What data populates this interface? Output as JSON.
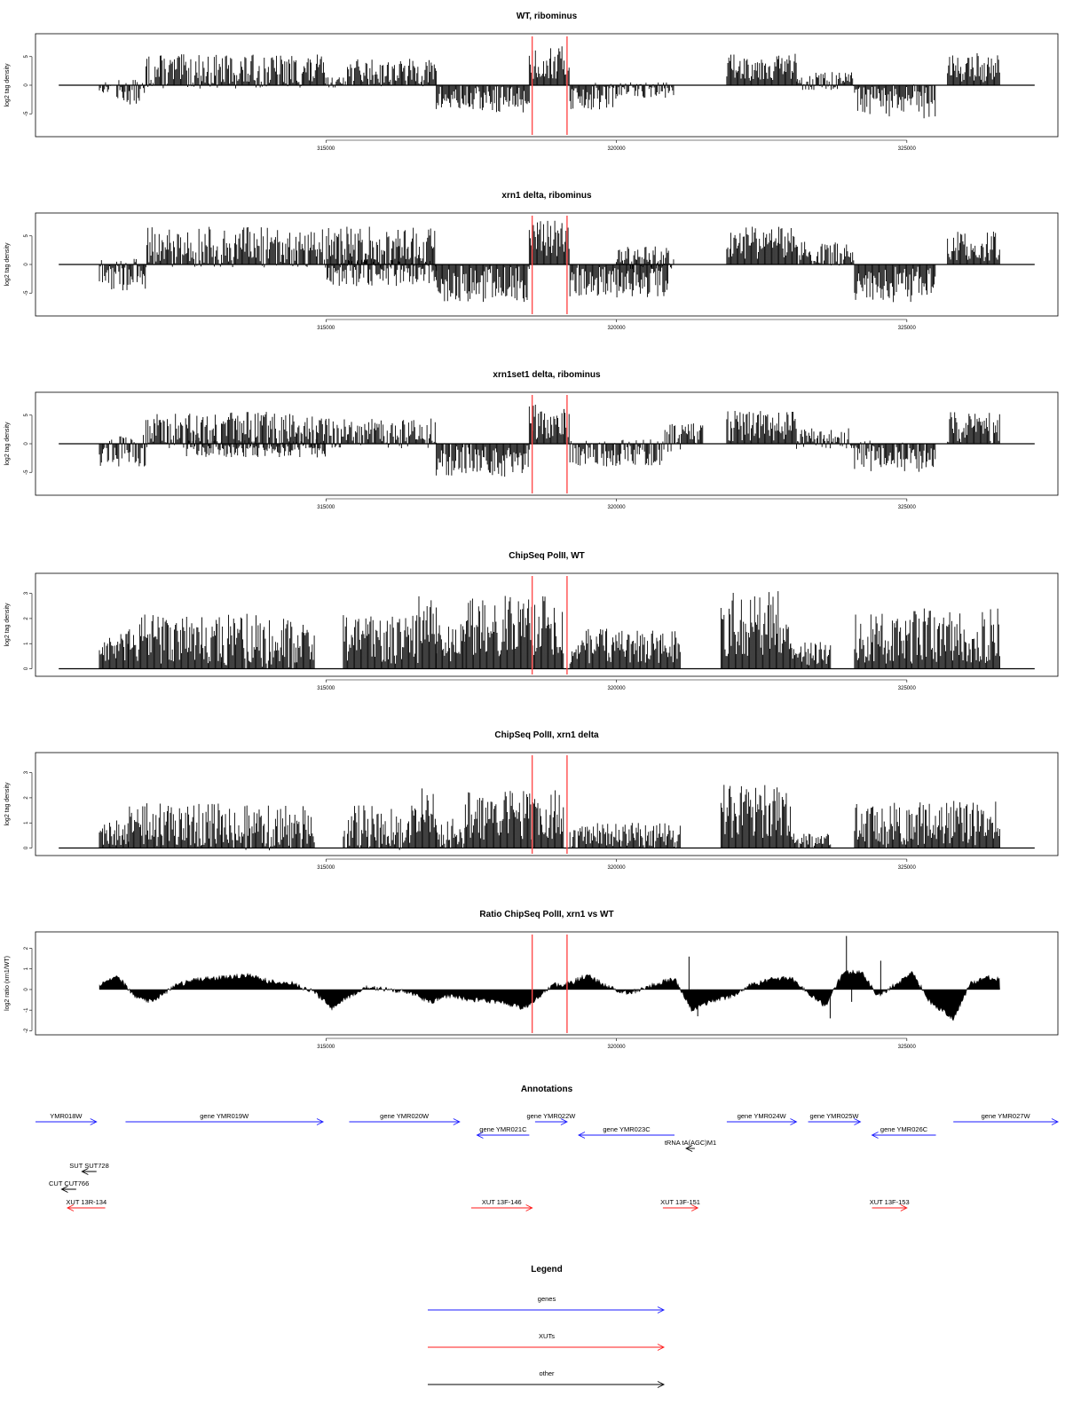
{
  "chart_data": [
    {
      "type": "bar",
      "title": "WT, ribominus",
      "ylabel": "log2 tag density",
      "ylim": [
        -9,
        9
      ],
      "yticks": [
        -5,
        0,
        5
      ],
      "xticks": [
        315000,
        320000,
        325000
      ],
      "regions": [
        {
          "start": 311100,
          "end": 311300,
          "mean": -0.4,
          "amp": 1.0
        },
        {
          "start": 311400,
          "end": 311900,
          "mean": -1.2,
          "amp": 2.2
        },
        {
          "start": 311900,
          "end": 315000,
          "mean": 2.4,
          "amp": 3.0
        },
        {
          "start": 315000,
          "end": 315300,
          "mean": 0.5,
          "amp": 0.9
        },
        {
          "start": 315300,
          "end": 316900,
          "mean": 2.2,
          "amp": 2.4
        },
        {
          "start": 316900,
          "end": 318500,
          "mean": -2.4,
          "amp": 2.4
        },
        {
          "start": 318500,
          "end": 319200,
          "mean": 3.8,
          "amp": 3.0
        },
        {
          "start": 319200,
          "end": 320000,
          "mean": -2.0,
          "amp": 2.4
        },
        {
          "start": 320000,
          "end": 321000,
          "mean": -0.8,
          "amp": 1.4
        },
        {
          "start": 321900,
          "end": 323100,
          "mean": 3.2,
          "amp": 2.4
        },
        {
          "start": 323100,
          "end": 324100,
          "mean": 0.7,
          "amp": 1.6
        },
        {
          "start": 324100,
          "end": 325500,
          "mean": -2.8,
          "amp": 3.0
        },
        {
          "start": 325700,
          "end": 326600,
          "mean": 3.0,
          "amp": 2.6
        }
      ]
    },
    {
      "type": "bar",
      "title": "xrn1 delta, ribominus",
      "ylabel": "log2 tag density",
      "ylim": [
        -9,
        9
      ],
      "yticks": [
        -5,
        0,
        5
      ],
      "xticks": [
        315000,
        320000,
        325000
      ],
      "regions": [
        {
          "start": 311100,
          "end": 311900,
          "mean": -1.8,
          "amp": 3.0
        },
        {
          "start": 311900,
          "end": 316900,
          "mean": 3.0,
          "amp": 3.6
        },
        {
          "start": 315000,
          "end": 316900,
          "mean": -1.4,
          "amp": 2.4
        },
        {
          "start": 316900,
          "end": 318500,
          "mean": -3.4,
          "amp": 3.2
        },
        {
          "start": 318500,
          "end": 319200,
          "mean": 4.5,
          "amp": 3.2
        },
        {
          "start": 319200,
          "end": 320900,
          "mean": -2.8,
          "amp": 3.0
        },
        {
          "start": 320000,
          "end": 321000,
          "mean": 1.2,
          "amp": 2.0
        },
        {
          "start": 321900,
          "end": 323100,
          "mean": 3.8,
          "amp": 2.8
        },
        {
          "start": 323100,
          "end": 324100,
          "mean": 1.8,
          "amp": 2.2
        },
        {
          "start": 324100,
          "end": 325500,
          "mean": -3.4,
          "amp": 3.2
        },
        {
          "start": 325700,
          "end": 326600,
          "mean": 3.2,
          "amp": 2.6
        }
      ]
    },
    {
      "type": "bar",
      "title": "xrn1set1 delta, ribominus",
      "ylabel": "log2 tag density",
      "ylim": [
        -9,
        9
      ],
      "yticks": [
        -5,
        0,
        5
      ],
      "xticks": [
        315000,
        320000,
        325000
      ],
      "regions": [
        {
          "start": 311100,
          "end": 311900,
          "mean": -1.2,
          "amp": 2.8
        },
        {
          "start": 311900,
          "end": 315000,
          "mean": 2.4,
          "amp": 3.2
        },
        {
          "start": 312600,
          "end": 315000,
          "mean": -0.8,
          "amp": 1.6
        },
        {
          "start": 315000,
          "end": 316900,
          "mean": 1.8,
          "amp": 2.6
        },
        {
          "start": 316900,
          "end": 318500,
          "mean": -2.8,
          "amp": 3.0
        },
        {
          "start": 318500,
          "end": 319200,
          "mean": 4.2,
          "amp": 3.4
        },
        {
          "start": 319200,
          "end": 320800,
          "mean": -1.6,
          "amp": 2.4
        },
        {
          "start": 320800,
          "end": 321500,
          "mean": 1.0,
          "amp": 2.6
        },
        {
          "start": 321900,
          "end": 323100,
          "mean": 3.2,
          "amp": 2.8
        },
        {
          "start": 323100,
          "end": 324100,
          "mean": 0.9,
          "amp": 1.8
        },
        {
          "start": 324100,
          "end": 325500,
          "mean": -2.2,
          "amp": 2.8
        },
        {
          "start": 325700,
          "end": 326600,
          "mean": 2.8,
          "amp": 2.8
        }
      ]
    },
    {
      "type": "bar",
      "title": "ChipSeq PolII, WT",
      "ylabel": "log2 tag density",
      "ylim": [
        -0.3,
        3.8
      ],
      "yticks": [
        0,
        1,
        2,
        3
      ],
      "xticks": [
        315000,
        320000,
        325000
      ],
      "regions": [
        {
          "start": 311100,
          "end": 311600,
          "mean": 0.8,
          "amp": 0.6
        },
        {
          "start": 311600,
          "end": 313200,
          "mean": 1.2,
          "amp": 1.0
        },
        {
          "start": 313200,
          "end": 314800,
          "mean": 1.1,
          "amp": 1.1
        },
        {
          "start": 315300,
          "end": 316600,
          "mean": 1.2,
          "amp": 1.0
        },
        {
          "start": 316600,
          "end": 316900,
          "mean": 1.9,
          "amp": 1.0
        },
        {
          "start": 316900,
          "end": 317400,
          "mean": 1.0,
          "amp": 0.8
        },
        {
          "start": 317400,
          "end": 319100,
          "mean": 1.7,
          "amp": 1.2
        },
        {
          "start": 319200,
          "end": 321100,
          "mean": 0.9,
          "amp": 0.7
        },
        {
          "start": 321800,
          "end": 323000,
          "mean": 1.8,
          "amp": 1.3
        },
        {
          "start": 323000,
          "end": 323700,
          "mean": 0.6,
          "amp": 0.5
        },
        {
          "start": 324100,
          "end": 325000,
          "mean": 1.2,
          "amp": 1.0
        },
        {
          "start": 325000,
          "end": 326600,
          "mean": 1.3,
          "amp": 1.1
        }
      ]
    },
    {
      "type": "bar",
      "title": "ChipSeq PolII, xrn1 delta",
      "ylabel": "log2 tag density",
      "ylim": [
        -0.3,
        3.8
      ],
      "yticks": [
        0,
        1,
        2,
        3
      ],
      "xticks": [
        315000,
        320000,
        325000
      ],
      "regions": [
        {
          "start": 311100,
          "end": 311600,
          "mean": 0.6,
          "amp": 0.5
        },
        {
          "start": 311600,
          "end": 313200,
          "mean": 0.9,
          "amp": 0.9
        },
        {
          "start": 313200,
          "end": 314800,
          "mean": 0.8,
          "amp": 0.9
        },
        {
          "start": 315300,
          "end": 316600,
          "mean": 0.8,
          "amp": 0.9
        },
        {
          "start": 316600,
          "end": 316900,
          "mean": 1.5,
          "amp": 0.9
        },
        {
          "start": 316900,
          "end": 317400,
          "mean": 0.6,
          "amp": 0.6
        },
        {
          "start": 317400,
          "end": 319100,
          "mean": 1.3,
          "amp": 1.0
        },
        {
          "start": 319200,
          "end": 321100,
          "mean": 0.5,
          "amp": 0.5
        },
        {
          "start": 321800,
          "end": 323000,
          "mean": 1.5,
          "amp": 1.1
        },
        {
          "start": 323000,
          "end": 323700,
          "mean": 0.3,
          "amp": 0.3
        },
        {
          "start": 324100,
          "end": 325000,
          "mean": 0.9,
          "amp": 0.9
        },
        {
          "start": 325000,
          "end": 326600,
          "mean": 1.0,
          "amp": 0.9
        }
      ]
    },
    {
      "type": "area",
      "title": "Ratio ChipSeq PolII, xrn1 vs WT",
      "ylabel": "log2 ratio (xrn1/WT)",
      "ylim": [
        -2.2,
        2.8
      ],
      "yticks": [
        -2,
        -1,
        0,
        1,
        2
      ],
      "xticks": [
        315000,
        320000,
        325000
      ],
      "profile": [
        [
          311100,
          0.2
        ],
        [
          311400,
          0.7
        ],
        [
          311700,
          -0.3
        ],
        [
          312000,
          -0.6
        ],
        [
          312400,
          0.2
        ],
        [
          312800,
          0.5
        ],
        [
          313300,
          0.6
        ],
        [
          313700,
          0.7
        ],
        [
          314000,
          0.4
        ],
        [
          314400,
          0.3
        ],
        [
          314800,
          -0.1
        ],
        [
          315100,
          -0.9
        ],
        [
          315300,
          -0.5
        ],
        [
          315700,
          0.1
        ],
        [
          316100,
          0.0
        ],
        [
          316500,
          -0.2
        ],
        [
          316800,
          -0.6
        ],
        [
          317100,
          -0.3
        ],
        [
          317500,
          -0.5
        ],
        [
          318000,
          -0.6
        ],
        [
          318400,
          -0.9
        ],
        [
          318600,
          -0.5
        ],
        [
          318900,
          0.2
        ],
        [
          319200,
          0.3
        ],
        [
          319500,
          0.7
        ],
        [
          319800,
          0.2
        ],
        [
          320200,
          -0.2
        ],
        [
          320700,
          0.3
        ],
        [
          321000,
          0.5
        ],
        [
          321300,
          -1.0
        ],
        [
          321600,
          -0.6
        ],
        [
          322000,
          -0.3
        ],
        [
          322300,
          0.2
        ],
        [
          322700,
          0.5
        ],
        [
          323000,
          0.6
        ],
        [
          323300,
          -0.2
        ],
        [
          323600,
          -0.8
        ],
        [
          323900,
          0.8
        ],
        [
          324200,
          0.9
        ],
        [
          324500,
          -0.3
        ],
        [
          324900,
          0.4
        ],
        [
          325100,
          0.8
        ],
        [
          325400,
          -0.6
        ],
        [
          325800,
          -1.4
        ],
        [
          326100,
          0.3
        ],
        [
          326400,
          0.6
        ],
        [
          326600,
          0.5
        ]
      ],
      "spikes": [
        {
          "x": 321250,
          "y": 1.6
        },
        {
          "x": 321400,
          "y": -1.3
        },
        {
          "x": 323960,
          "y": 2.6
        },
        {
          "x": 324050,
          "y": -0.6
        },
        {
          "x": 324550,
          "y": 1.4
        },
        {
          "x": 323680,
          "y": -1.4
        }
      ]
    }
  ],
  "xrange": [
    310000,
    327600
  ],
  "highlight": {
    "color": "#ff4d4d",
    "positions": [
      318550,
      319150
    ]
  },
  "colors": {
    "genes": "#1a1aff",
    "XUTs": "#ff1a1a",
    "other": "#000000"
  },
  "annotations": {
    "title": "Annotations",
    "features": [
      {
        "label": "YMR018W",
        "category": "genes",
        "strand": "+",
        "start": 310000,
        "end": 311050,
        "row": 0
      },
      {
        "label": "gene YMR019W",
        "category": "genes",
        "strand": "+",
        "start": 311550,
        "end": 314950,
        "row": 0
      },
      {
        "label": "gene YMR020W",
        "category": "genes",
        "strand": "+",
        "start": 315400,
        "end": 317300,
        "row": 0
      },
      {
        "label": "gene YMR021C",
        "category": "genes",
        "strand": "-",
        "start": 317600,
        "end": 318500,
        "row": 1
      },
      {
        "label": "gene YMR022W",
        "category": "genes",
        "strand": "+",
        "start": 318600,
        "end": 319150,
        "row": 0
      },
      {
        "label": "gene YMR023C",
        "category": "genes",
        "strand": "-",
        "start": 319350,
        "end": 321000,
        "row": 1
      },
      {
        "label": "gene YMR024W",
        "category": "genes",
        "strand": "+",
        "start": 321900,
        "end": 323100,
        "row": 0
      },
      {
        "label": "gene YMR025W",
        "category": "genes",
        "strand": "+",
        "start": 323300,
        "end": 324200,
        "row": 0
      },
      {
        "label": "gene YMR026C",
        "category": "genes",
        "strand": "-",
        "start": 324400,
        "end": 325500,
        "row": 1
      },
      {
        "label": "gene YMR027W",
        "category": "genes",
        "strand": "+",
        "start": 325800,
        "end": 327600,
        "row": 0
      },
      {
        "label": "tRNA tA(AGC)M1",
        "category": "other",
        "strand": "-",
        "start": 321200,
        "end": 321350,
        "row": 2
      },
      {
        "label": "SUT SUT728",
        "category": "other",
        "strand": "-",
        "start": 310800,
        "end": 311050,
        "row": 4
      },
      {
        "label": "CUT CUT766",
        "category": "other",
        "strand": "-",
        "start": 310450,
        "end": 310700,
        "row": 5
      },
      {
        "label": "XUT 13R-134",
        "category": "XUTs",
        "strand": "-",
        "start": 310550,
        "end": 311200,
        "row": 6
      },
      {
        "label": "XUT 13F-146",
        "category": "XUTs",
        "strand": "+",
        "start": 317500,
        "end": 318550,
        "row": 6
      },
      {
        "label": "XUT 13F-151",
        "category": "XUTs",
        "strand": "+",
        "start": 320800,
        "end": 321400,
        "row": 6
      },
      {
        "label": "XUT 13F-153",
        "category": "XUTs",
        "strand": "+",
        "start": 324400,
        "end": 325000,
        "row": 6
      }
    ]
  },
  "legend": {
    "title": "Legend",
    "items": [
      {
        "label": "genes",
        "category": "genes"
      },
      {
        "label": "XUTs",
        "category": "XUTs"
      },
      {
        "label": "other",
        "category": "other"
      }
    ]
  }
}
